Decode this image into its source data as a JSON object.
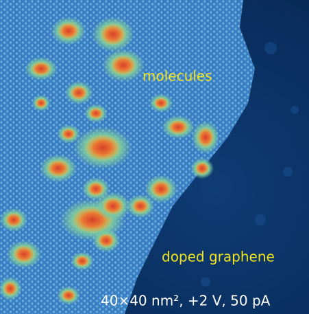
{
  "labels": {
    "region_top": "molecules",
    "region_bottom": "doped graphene",
    "scan_info": "40×40 nm², +2 V, 50 pA"
  }
}
